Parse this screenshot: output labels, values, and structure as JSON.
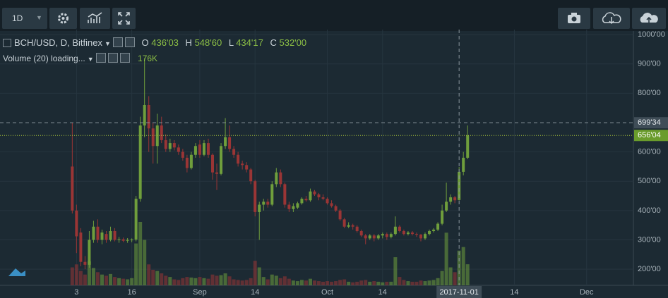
{
  "toolbar": {
    "interval": "1D"
  },
  "chart_data": {
    "type": "candlestick",
    "symbol": "BCH/USD, D, Bitfinex",
    "ohlc_legend": {
      "o_label": "O",
      "o": "436'03",
      "h_label": "H",
      "h": "548'60",
      "l_label": "L",
      "l": "434'17",
      "c_label": "C",
      "c": "532'00"
    },
    "volume_legend": {
      "name": "Volume (20) loading...",
      "value": "176K"
    },
    "up_color": "#6f9e3c",
    "down_color": "#9a3535",
    "x": [
      "2017-08-02",
      "2017-08-03",
      "2017-08-04",
      "2017-08-05",
      "2017-08-06",
      "2017-08-07",
      "2017-08-08",
      "2017-08-09",
      "2017-08-10",
      "2017-08-11",
      "2017-08-12",
      "2017-08-13",
      "2017-08-14",
      "2017-08-15",
      "2017-08-16",
      "2017-08-17",
      "2017-08-18",
      "2017-08-19",
      "2017-08-20",
      "2017-08-21",
      "2017-08-22",
      "2017-08-23",
      "2017-08-24",
      "2017-08-25",
      "2017-08-26",
      "2017-08-27",
      "2017-08-28",
      "2017-08-29",
      "2017-08-30",
      "2017-08-31",
      "2017-09-01",
      "2017-09-02",
      "2017-09-03",
      "2017-09-04",
      "2017-09-05",
      "2017-09-06",
      "2017-09-07",
      "2017-09-08",
      "2017-09-09",
      "2017-09-10",
      "2017-09-11",
      "2017-09-12",
      "2017-09-13",
      "2017-09-14",
      "2017-09-15",
      "2017-09-16",
      "2017-09-17",
      "2017-09-18",
      "2017-09-19",
      "2017-09-20",
      "2017-09-21",
      "2017-09-22",
      "2017-09-23",
      "2017-09-24",
      "2017-09-25",
      "2017-09-26",
      "2017-09-27",
      "2017-09-28",
      "2017-09-29",
      "2017-09-30",
      "2017-10-01",
      "2017-10-02",
      "2017-10-03",
      "2017-10-04",
      "2017-10-05",
      "2017-10-06",
      "2017-10-07",
      "2017-10-08",
      "2017-10-09",
      "2017-10-10",
      "2017-10-11",
      "2017-10-12",
      "2017-10-13",
      "2017-10-14",
      "2017-10-15",
      "2017-10-16",
      "2017-10-17",
      "2017-10-18",
      "2017-10-19",
      "2017-10-20",
      "2017-10-21",
      "2017-10-22",
      "2017-10-23",
      "2017-10-24",
      "2017-10-25",
      "2017-10-26",
      "2017-10-27",
      "2017-10-28",
      "2017-10-29",
      "2017-10-30",
      "2017-10-31",
      "2017-11-01",
      "2017-11-02",
      "2017-11-03"
    ],
    "open": [
      550,
      400,
      325,
      225,
      215,
      300,
      345,
      300,
      320,
      300,
      330,
      300,
      302,
      297,
      300,
      301,
      440,
      690,
      760,
      680,
      620,
      690,
      640,
      610,
      630,
      615,
      600,
      580,
      545,
      590,
      625,
      590,
      630,
      590,
      530,
      525,
      620,
      650,
      610,
      590,
      560,
      555,
      540,
      500,
      395,
      420,
      430,
      420,
      490,
      530,
      490,
      420,
      405,
      410,
      425,
      440,
      435,
      465,
      455,
      445,
      440,
      425,
      415,
      400,
      370,
      345,
      350,
      345,
      330,
      315,
      305,
      315,
      305,
      315,
      320,
      310,
      320,
      345,
      330,
      320,
      325,
      320,
      318,
      305,
      320,
      330,
      335,
      355,
      400,
      430,
      445,
      436.03,
      532,
      580
    ],
    "high": [
      700,
      420,
      340,
      245,
      330,
      365,
      370,
      335,
      330,
      345,
      340,
      310,
      308,
      306,
      305,
      450,
      720,
      920,
      790,
      700,
      730,
      720,
      660,
      645,
      640,
      625,
      610,
      590,
      600,
      630,
      640,
      640,
      645,
      595,
      560,
      630,
      715,
      690,
      620,
      600,
      570,
      565,
      545,
      505,
      430,
      440,
      440,
      500,
      545,
      540,
      495,
      430,
      425,
      430,
      445,
      450,
      475,
      470,
      460,
      455,
      445,
      435,
      420,
      405,
      375,
      360,
      355,
      350,
      335,
      320,
      320,
      320,
      320,
      325,
      325,
      325,
      380,
      350,
      335,
      330,
      330,
      325,
      320,
      325,
      335,
      340,
      360,
      420,
      495,
      455,
      450,
      548.6,
      600,
      690
    ],
    "low": [
      390,
      255,
      210,
      200,
      205,
      290,
      290,
      285,
      290,
      295,
      295,
      290,
      292,
      290,
      292,
      295,
      430,
      650,
      600,
      560,
      560,
      630,
      600,
      600,
      605,
      590,
      570,
      530,
      540,
      580,
      580,
      585,
      580,
      505,
      470,
      520,
      610,
      600,
      580,
      550,
      540,
      530,
      490,
      380,
      300,
      400,
      410,
      415,
      480,
      480,
      410,
      395,
      395,
      405,
      420,
      430,
      430,
      450,
      435,
      435,
      420,
      410,
      395,
      365,
      340,
      340,
      335,
      325,
      310,
      285,
      300,
      295,
      300,
      305,
      300,
      305,
      315,
      325,
      315,
      315,
      315,
      310,
      295,
      300,
      315,
      325,
      330,
      350,
      395,
      420,
      425,
      434.17,
      520,
      575
    ],
    "close": [
      400,
      312,
      225,
      215,
      300,
      345,
      300,
      325,
      300,
      330,
      300,
      302,
      297,
      300,
      301,
      440,
      690,
      760,
      680,
      620,
      690,
      640,
      610,
      630,
      615,
      600,
      580,
      545,
      590,
      620,
      590,
      630,
      590,
      530,
      525,
      620,
      650,
      610,
      590,
      560,
      555,
      540,
      500,
      395,
      420,
      430,
      420,
      490,
      530,
      490,
      420,
      405,
      415,
      425,
      440,
      435,
      465,
      455,
      445,
      440,
      425,
      415,
      400,
      370,
      345,
      350,
      345,
      330,
      315,
      305,
      315,
      305,
      315,
      320,
      310,
      320,
      345,
      330,
      320,
      325,
      320,
      318,
      305,
      320,
      330,
      335,
      355,
      400,
      430,
      445,
      435,
      532,
      580,
      656.04
    ],
    "volume": [
      150,
      175,
      120,
      90,
      200,
      145,
      110,
      90,
      80,
      95,
      70,
      60,
      55,
      50,
      60,
      350,
      530,
      380,
      175,
      130,
      120,
      100,
      80,
      70,
      50,
      45,
      60,
      70,
      65,
      60,
      70,
      60,
      55,
      90,
      80,
      85,
      100,
      75,
      50,
      45,
      40,
      45,
      60,
      205,
      150,
      70,
      50,
      90,
      80,
      60,
      75,
      55,
      40,
      35,
      45,
      40,
      55,
      40,
      35,
      30,
      35,
      30,
      35,
      45,
      50,
      30,
      25,
      30,
      40,
      45,
      30,
      35,
      30,
      25,
      30,
      30,
      235,
      70,
      45,
      35,
      30,
      30,
      40,
      35,
      40,
      45,
      60,
      120,
      440,
      150,
      110,
      290,
      320,
      176
    ],
    "xlim": [
      "2017-07-16",
      "2017-12-12"
    ],
    "xticks": [
      {
        "value": "2017-08-03",
        "label": "3"
      },
      {
        "value": "2017-08-16",
        "label": "16"
      },
      {
        "value": "2017-09-01",
        "label": "Sep"
      },
      {
        "value": "2017-09-14",
        "label": "14"
      },
      {
        "value": "2017-10-01",
        "label": "Oct"
      },
      {
        "value": "2017-10-14",
        "label": "14"
      },
      {
        "value": "2017-11-14",
        "label": "14"
      },
      {
        "value": "2017-12-01",
        "label": "Dec"
      }
    ],
    "ylim": [
      145,
      1017
    ],
    "yticks": [
      {
        "value": 200,
        "label": "200'00"
      },
      {
        "value": 300,
        "label": "300'00"
      },
      {
        "value": 400,
        "label": "400'00"
      },
      {
        "value": 500,
        "label": "500'00"
      },
      {
        "value": 600,
        "label": "600'00"
      },
      {
        "value": 800,
        "label": "800'00"
      },
      {
        "value": 900,
        "label": "900'00"
      },
      {
        "value": 1000,
        "label": "1000'00"
      }
    ],
    "grid": true,
    "crosshair": {
      "x": "2017-11-01",
      "y": {
        "value": 699.34,
        "label": "699'34"
      }
    },
    "last_price": {
      "value": 656.04,
      "label": "656'04"
    }
  }
}
